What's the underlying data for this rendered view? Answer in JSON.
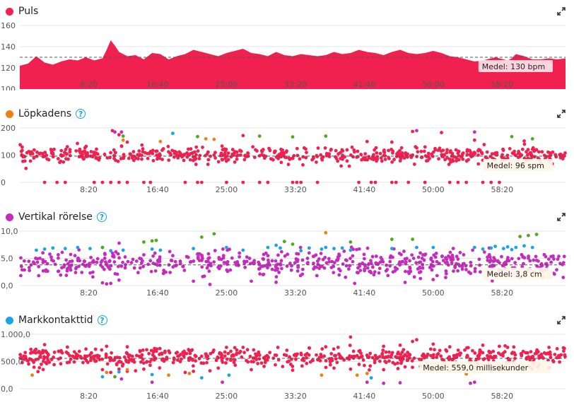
{
  "colors": {
    "red": "#f0204f",
    "orange": "#ee7f10",
    "magenta": "#c52bbd",
    "blue": "#1aa3e8",
    "green": "#53a81f",
    "grid": "#e4e4e4",
    "help": "#1aa3e8"
  },
  "icons": {
    "expand": "expand-icon",
    "help": "help-icon"
  },
  "x_tick_labels": [
    "8:20",
    "16:40",
    "25:00",
    "33:20",
    "41:40",
    "50:00",
    "58:20"
  ],
  "panels": [
    {
      "id": "puls",
      "title": "Puls",
      "dot_color": "#f0204f",
      "has_help": false,
      "avg_label": "Medel: 130 bpm",
      "y_ticks": [
        "160",
        "140",
        "120",
        "100"
      ]
    },
    {
      "id": "lopkadens",
      "title": "Löpkadens",
      "dot_color": "#ee7f10",
      "has_help": true,
      "help_text": "?",
      "avg_label": "Medel: 96 spm",
      "y_ticks": [
        "200",
        "100",
        "0"
      ]
    },
    {
      "id": "vertikal",
      "title": "Vertikal rörelse",
      "dot_color": "#c52bbd",
      "has_help": true,
      "help_text": "?",
      "avg_label": "Medel: 3,8 cm",
      "y_ticks": [
        "10,0",
        "5,0",
        "0,0"
      ]
    },
    {
      "id": "markkontakt",
      "title": "Markkontakttid",
      "dot_color": "#1aa3e8",
      "has_help": true,
      "help_text": "?",
      "avg_label": "Medel: 559,0 millisekunder",
      "y_ticks": [
        "1.000,0",
        "500,0",
        "0,0"
      ]
    }
  ],
  "chart_data": [
    {
      "type": "area",
      "title": "Puls",
      "x_unit": "minutes",
      "xlim": [
        0,
        66
      ],
      "ylim": [
        100,
        160
      ],
      "average": 130,
      "series": [
        {
          "name": "Puls",
          "color": "#f0204f",
          "x": [
            0,
            1,
            2,
            3,
            4,
            5,
            6,
            7,
            8,
            9,
            10,
            10.5,
            11,
            11.5,
            12,
            13,
            14,
            15,
            16,
            17,
            18,
            19,
            20,
            21,
            22,
            23,
            24,
            25,
            26,
            27,
            28,
            29,
            30,
            31,
            32,
            33,
            34,
            35,
            36,
            37,
            38,
            39,
            40,
            41,
            42,
            43,
            44,
            45,
            46,
            47,
            48,
            49,
            50,
            51,
            52,
            53,
            54,
            55,
            56,
            57,
            57.5,
            58,
            58.5,
            59,
            59.5,
            60,
            61,
            62,
            63,
            64,
            65,
            66
          ],
          "y": [
            122,
            124,
            131,
            125,
            123,
            126,
            128,
            127,
            130,
            127,
            129,
            137,
            146,
            141,
            135,
            131,
            132,
            128,
            134,
            133,
            128,
            131,
            133,
            137,
            135,
            133,
            131,
            134,
            136,
            138,
            134,
            133,
            131,
            135,
            132,
            131,
            133,
            132,
            131,
            132,
            135,
            133,
            134,
            137,
            135,
            134,
            132,
            135,
            137,
            134,
            133,
            134,
            136,
            134,
            131,
            130,
            128,
            126,
            127,
            129,
            130,
            129,
            128,
            127,
            129,
            133,
            131,
            128,
            128,
            129,
            128,
            129
          ]
        }
      ]
    },
    {
      "type": "scatter",
      "title": "Löpkadens",
      "x_unit": "minutes",
      "xlim": [
        0,
        66
      ],
      "ylim": [
        0,
        200
      ],
      "average": 96,
      "series": [
        {
          "name": "main",
          "color": "#f0204f",
          "density": 600,
          "x_range": [
            0,
            66
          ],
          "y_center": 100,
          "y_spread": 14
        },
        {
          "name": "low",
          "color": "#f0204f",
          "points": [
            [
              3,
              0
            ],
            [
              4.5,
              0
            ],
            [
              5.5,
              0
            ],
            [
              9,
              0
            ],
            [
              10,
              0
            ],
            [
              11,
              0
            ],
            [
              12,
              0
            ],
            [
              13,
              0
            ],
            [
              15,
              0
            ],
            [
              15.8,
              0
            ],
            [
              20,
              0
            ],
            [
              21.5,
              0
            ],
            [
              22,
              0
            ],
            [
              25,
              0
            ],
            [
              27,
              0
            ],
            [
              29,
              0
            ],
            [
              30,
              0
            ],
            [
              33,
              0
            ],
            [
              33.5,
              0
            ],
            [
              34,
              0
            ],
            [
              36,
              0
            ],
            [
              41,
              0
            ],
            [
              42.5,
              0
            ],
            [
              43,
              0
            ],
            [
              45,
              0
            ],
            [
              45.5,
              0
            ],
            [
              47,
              0
            ],
            [
              49,
              0
            ],
            [
              52,
              0
            ],
            [
              53,
              0
            ],
            [
              54,
              0
            ],
            [
              56,
              0
            ],
            [
              57,
              0
            ],
            [
              58,
              0
            ]
          ]
        },
        {
          "name": "high-red",
          "color": "#f0204f",
          "points": [
            [
              11.2,
              190
            ],
            [
              12,
              175
            ],
            [
              13,
              148
            ],
            [
              27,
              172
            ],
            [
              42,
              150
            ],
            [
              45,
              148
            ],
            [
              47.5,
              187
            ],
            [
              51,
              183
            ],
            [
              55,
              155
            ],
            [
              61,
              152
            ]
          ]
        },
        {
          "name": "orange",
          "color": "#ee7f10",
          "points": [
            [
              12.5,
              155
            ],
            [
              17,
              150
            ],
            [
              22.5,
              160
            ],
            [
              23.5,
              158
            ]
          ]
        },
        {
          "name": "magenta",
          "color": "#c52bbd",
          "points": [
            [
              11.5,
              185
            ],
            [
              12.3,
              185
            ],
            [
              48,
              190
            ],
            [
              55,
              185
            ]
          ]
        },
        {
          "name": "blue",
          "color": "#1aa3e8",
          "points": [
            [
              18.5,
              180
            ]
          ]
        },
        {
          "name": "green",
          "color": "#53a81f",
          "points": [
            [
              12.5,
              170
            ],
            [
              21.5,
              168
            ],
            [
              29,
              170
            ],
            [
              33,
              167
            ],
            [
              37,
              170
            ],
            [
              59.5,
              168
            ],
            [
              62,
              160
            ]
          ]
        }
      ]
    },
    {
      "type": "scatter",
      "title": "Vertikal rörelse",
      "x_unit": "minutes",
      "xlim": [
        0,
        66
      ],
      "ylim": [
        0,
        10
      ],
      "average": 3.8,
      "series": [
        {
          "name": "main",
          "color": "#c52bbd",
          "density": 600,
          "x_range": [
            0,
            66
          ],
          "y_center": 4.0,
          "y_spread": 1.2
        },
        {
          "name": "blue",
          "color": "#1aa3e8",
          "points": [
            [
              2,
              6.5
            ],
            [
              3,
              6.7
            ],
            [
              4,
              6.9
            ],
            [
              5.5,
              6.8
            ],
            [
              7,
              7
            ],
            [
              8.5,
              6.8
            ],
            [
              10,
              7
            ],
            [
              11,
              6.4
            ],
            [
              12.5,
              6.5
            ],
            [
              16,
              6.7
            ],
            [
              17,
              6.5
            ],
            [
              21,
              6.8
            ],
            [
              25,
              7
            ],
            [
              27,
              6.5
            ],
            [
              30,
              7
            ],
            [
              31,
              7.4
            ],
            [
              31.5,
              6.9
            ],
            [
              34,
              6.4
            ],
            [
              35,
              6.9
            ],
            [
              36.5,
              6.7
            ],
            [
              37,
              7
            ],
            [
              38,
              6.8
            ],
            [
              39,
              6.9
            ],
            [
              40,
              6.5
            ],
            [
              45,
              6.8
            ],
            [
              48,
              7
            ],
            [
              50,
              7
            ],
            [
              55,
              7
            ],
            [
              56,
              6.7
            ],
            [
              57,
              6.9
            ],
            [
              57.5,
              7.2
            ],
            [
              58.5,
              6.8
            ],
            [
              59,
              7.1
            ],
            [
              59.5,
              6.6
            ],
            [
              60,
              7
            ],
            [
              61,
              7.3
            ],
            [
              62,
              7
            ]
          ]
        },
        {
          "name": "green",
          "color": "#53a81f",
          "points": [
            [
              10,
              7
            ],
            [
              15,
              8
            ],
            [
              16,
              8.2
            ],
            [
              16.5,
              8.3
            ],
            [
              22,
              8.9
            ],
            [
              23.5,
              9.5
            ],
            [
              32,
              8.1
            ],
            [
              33,
              7.6
            ],
            [
              40,
              8
            ],
            [
              45,
              8.5
            ],
            [
              47.5,
              8.5
            ],
            [
              60.5,
              9
            ],
            [
              61.5,
              9.2
            ],
            [
              62.5,
              9.4
            ]
          ]
        },
        {
          "name": "orange",
          "color": "#ee7f10",
          "points": [
            [
              37,
              9.7
            ]
          ]
        },
        {
          "name": "low",
          "color": "#c52bbd",
          "points": [
            [
              10,
              0.5
            ],
            [
              10.5,
              0.3
            ],
            [
              11,
              0.4
            ],
            [
              12,
              1
            ],
            [
              21,
              0.8
            ],
            [
              23,
              0.2
            ],
            [
              28,
              0.8
            ],
            [
              31,
              0.6
            ],
            [
              40.5,
              0.4
            ]
          ]
        }
      ]
    },
    {
      "type": "scatter",
      "title": "Markkontakttid",
      "x_unit": "minutes",
      "xlim": [
        0,
        66
      ],
      "ylim": [
        0,
        1000
      ],
      "average": 559,
      "series": [
        {
          "name": "main",
          "color": "#f0204f",
          "density": 600,
          "x_range": [
            0,
            66
          ],
          "y_center": 580,
          "y_spread": 80
        },
        {
          "name": "high",
          "color": "#f0204f",
          "points": [
            [
              3,
              810
            ],
            [
              5,
              700
            ],
            [
              8,
              730
            ],
            [
              10.5,
              780
            ],
            [
              13,
              770
            ],
            [
              20.5,
              700
            ],
            [
              25,
              760
            ],
            [
              27,
              760
            ],
            [
              35,
              750
            ],
            [
              37,
              770
            ],
            [
              38.5,
              760
            ],
            [
              40,
              950
            ],
            [
              44,
              780
            ],
            [
              46,
              800
            ],
            [
              47.5,
              870
            ],
            [
              48,
              900
            ],
            [
              50,
              820
            ],
            [
              52,
              770
            ],
            [
              56,
              800
            ],
            [
              58,
              780
            ],
            [
              59,
              760
            ],
            [
              64,
              760
            ]
          ]
        },
        {
          "name": "low",
          "color": "#f0204f",
          "points": [
            [
              10,
              350
            ],
            [
              11,
              300
            ],
            [
              12,
              360
            ],
            [
              13,
              320
            ],
            [
              14,
              330
            ],
            [
              15,
              360
            ],
            [
              20,
              300
            ],
            [
              21,
              320
            ],
            [
              23,
              330
            ],
            [
              24,
              380
            ],
            [
              28,
              350
            ],
            [
              33,
              340
            ],
            [
              38,
              380
            ],
            [
              40,
              360
            ],
            [
              44,
              350
            ],
            [
              52,
              330
            ],
            [
              55,
              380
            ],
            [
              56,
              350
            ],
            [
              57,
              320
            ],
            [
              58,
              340
            ],
            [
              60,
              380
            ],
            [
              62,
              360
            ],
            [
              64,
              380
            ]
          ]
        },
        {
          "name": "orange",
          "color": "#ee7f10",
          "points": [
            [
              1.5,
              250
            ],
            [
              10.5,
              300
            ],
            [
              13,
              350
            ],
            [
              18,
              250
            ],
            [
              20.5,
              280
            ],
            [
              36.5,
              250
            ],
            [
              40.8,
              250
            ],
            [
              42,
              280
            ],
            [
              54,
              270
            ]
          ]
        },
        {
          "name": "blue",
          "color": "#1aa3e8",
          "points": [
            [
              10,
              220
            ],
            [
              12,
              310
            ],
            [
              16,
              260
            ],
            [
              22,
              200
            ],
            [
              25.3,
              250
            ],
            [
              42.5,
              200
            ]
          ]
        },
        {
          "name": "green",
          "color": "#53a81f",
          "points": [
            [
              11.5,
              220
            ]
          ]
        },
        {
          "name": "magenta",
          "color": "#c52bbd",
          "points": [
            [
              12.3,
              180
            ],
            [
              16,
              120
            ],
            [
              24.5,
              120
            ],
            [
              42,
              120
            ],
            [
              44,
              100
            ],
            [
              46,
              110
            ],
            [
              54.5,
              100
            ],
            [
              55,
              120
            ]
          ]
        }
      ]
    }
  ]
}
